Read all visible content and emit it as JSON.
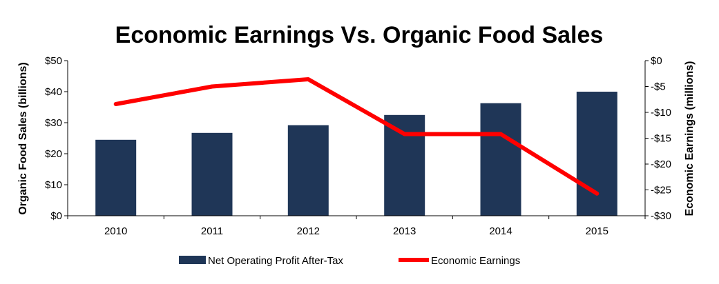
{
  "chart_data": {
    "type": "bar",
    "title": "Economic Earnings Vs. Organic Food Sales",
    "categories": [
      "2010",
      "2011",
      "2012",
      "2013",
      "2014",
      "2015"
    ],
    "series": [
      {
        "name": "Net Operating Profit After-Tax",
        "type": "bar",
        "axis": "left",
        "color": "#1f3657",
        "values": [
          24.5,
          26.7,
          29.2,
          32.5,
          36.3,
          40.0
        ]
      },
      {
        "name": "Economic Earnings",
        "type": "line",
        "axis": "right",
        "color": "#ff0000",
        "values": [
          -8.4,
          -5.0,
          -3.6,
          -14.2,
          -14.2,
          -25.7
        ]
      }
    ],
    "ylabel": "Organic Food Sales (billions)",
    "y2label": "Economic Earnings (millions)",
    "ylim": [
      0,
      50
    ],
    "y2lim": [
      -30,
      0
    ],
    "yticks": [
      "$0",
      "$10",
      "$20",
      "$30",
      "$40",
      "$50"
    ],
    "y2ticks": [
      "-$30",
      "-$25",
      "-$20",
      "-$15",
      "-$10",
      "-$5",
      "$0"
    ],
    "legend_position": "bottom",
    "grid": false
  }
}
